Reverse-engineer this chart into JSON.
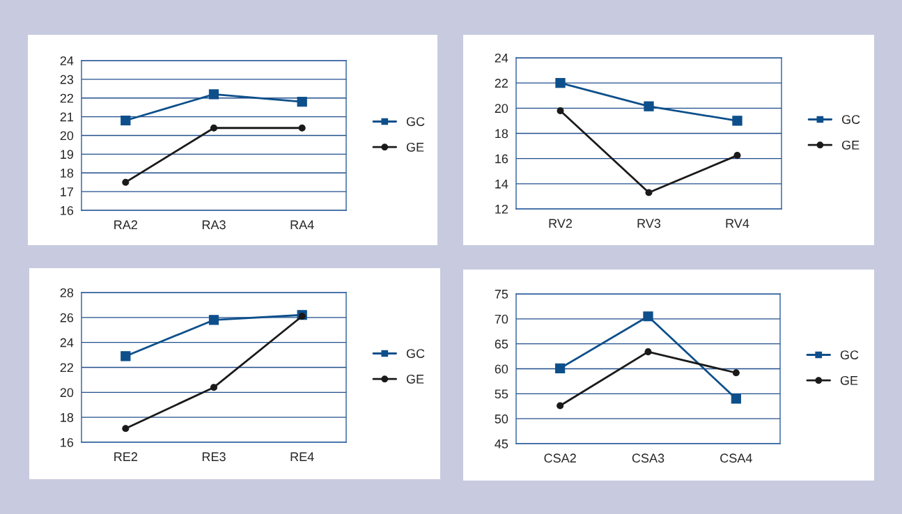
{
  "chart_data": [
    {
      "type": "line",
      "categories": [
        "RA2",
        "RA3",
        "RA4"
      ],
      "ylim": [
        16,
        24
      ],
      "yticks": [
        16,
        17,
        18,
        19,
        20,
        21,
        22,
        23,
        24
      ],
      "grid": "y",
      "legend": "right",
      "series": [
        {
          "name": "GC",
          "color": "#0d4f8b",
          "marker": "square",
          "values": [
            20.8,
            22.2,
            21.8
          ]
        },
        {
          "name": "GE",
          "color": "#1a1a1a",
          "marker": "circle",
          "values": [
            17.5,
            20.4,
            20.4
          ]
        }
      ]
    },
    {
      "type": "line",
      "categories": [
        "RV2",
        "RV3",
        "RV4"
      ],
      "ylim": [
        12,
        24
      ],
      "yticks": [
        12,
        14,
        16,
        18,
        20,
        22,
        24
      ],
      "grid": "y",
      "legend": "right",
      "series": [
        {
          "name": "GC",
          "color": "#0d4f8b",
          "marker": "square",
          "values": [
            22.0,
            20.15,
            19.0
          ]
        },
        {
          "name": "GE",
          "color": "#1a1a1a",
          "marker": "circle",
          "values": [
            19.8,
            13.3,
            16.25
          ]
        }
      ]
    },
    {
      "type": "line",
      "categories": [
        "RE2",
        "RE3",
        "RE4"
      ],
      "ylim": [
        16,
        28
      ],
      "yticks": [
        16,
        18,
        20,
        22,
        24,
        26,
        28
      ],
      "grid": "y",
      "legend": "right",
      "series": [
        {
          "name": "GC",
          "color": "#0d4f8b",
          "marker": "square",
          "values": [
            22.9,
            25.8,
            26.2
          ]
        },
        {
          "name": "GE",
          "color": "#1a1a1a",
          "marker": "circle",
          "values": [
            17.1,
            20.4,
            26.1
          ]
        }
      ]
    },
    {
      "type": "line",
      "categories": [
        "CSA2",
        "CSA3",
        "CSA4"
      ],
      "ylim": [
        45,
        75
      ],
      "yticks": [
        45,
        50,
        55,
        60,
        65,
        70,
        75
      ],
      "grid": "y",
      "legend": "right",
      "series": [
        {
          "name": "GC",
          "color": "#0d4f8b",
          "marker": "square",
          "values": [
            60.1,
            70.5,
            54.0
          ]
        },
        {
          "name": "GE",
          "color": "#1a1a1a",
          "marker": "circle",
          "values": [
            52.6,
            63.4,
            59.2
          ]
        }
      ]
    }
  ]
}
